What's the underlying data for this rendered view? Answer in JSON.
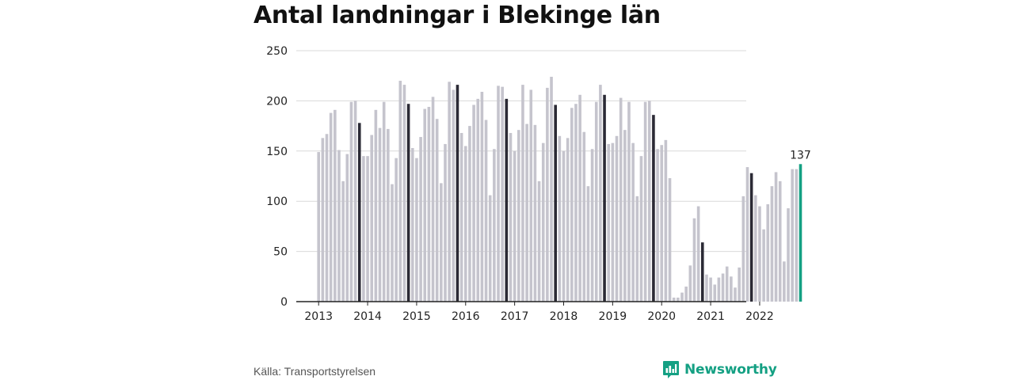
{
  "chart_data": {
    "type": "bar",
    "title": "Antal landningar i Blekinge län",
    "xlabel": "",
    "ylabel": "",
    "ylim": [
      0,
      250
    ],
    "yticks": [
      0,
      50,
      100,
      150,
      200,
      250
    ],
    "xtick_labels": [
      "2013",
      "2014",
      "2015",
      "2016",
      "2017",
      "2018",
      "2019",
      "2020",
      "2021",
      "2022"
    ],
    "grid": true,
    "highlighted_last_value_label": "137",
    "series": [
      {
        "values": [
          149,
          163,
          167,
          188,
          191,
          151,
          120,
          147,
          199,
          200,
          178,
          145,
          145,
          166,
          191,
          173,
          199,
          172,
          117,
          143,
          220,
          216,
          197,
          153,
          143,
          164,
          192,
          194,
          204,
          182,
          118,
          157,
          219,
          211,
          216,
          168,
          155,
          175,
          196,
          202,
          209,
          181,
          106,
          152,
          215,
          214,
          202,
          168,
          150,
          171,
          216,
          177,
          211,
          176,
          120,
          158,
          213,
          224,
          196,
          165,
          150,
          163,
          193,
          197,
          206,
          169,
          115,
          152,
          199,
          216,
          206,
          157,
          158,
          165,
          203,
          171,
          199,
          158,
          105,
          145,
          199,
          200,
          186,
          152,
          156,
          161,
          123,
          4,
          4,
          9,
          15,
          36,
          83,
          95,
          59,
          27,
          24,
          17,
          24,
          28,
          35,
          25,
          14,
          34,
          105,
          134,
          128,
          106,
          95,
          72,
          97,
          115,
          129,
          120,
          40,
          93,
          132,
          132,
          137
        ]
      }
    ],
    "colors": {
      "bar": "#c5c4cd",
      "december_bar": "#2b2a35",
      "latest_bar": "#14a083",
      "grid": "#d9d9d9",
      "axis": "#222222"
    }
  },
  "footer": {
    "source": "Källa: Transportstyrelsen",
    "brand": "Newsworthy",
    "brand_icon": "newsworthy-chart-logo-icon"
  }
}
